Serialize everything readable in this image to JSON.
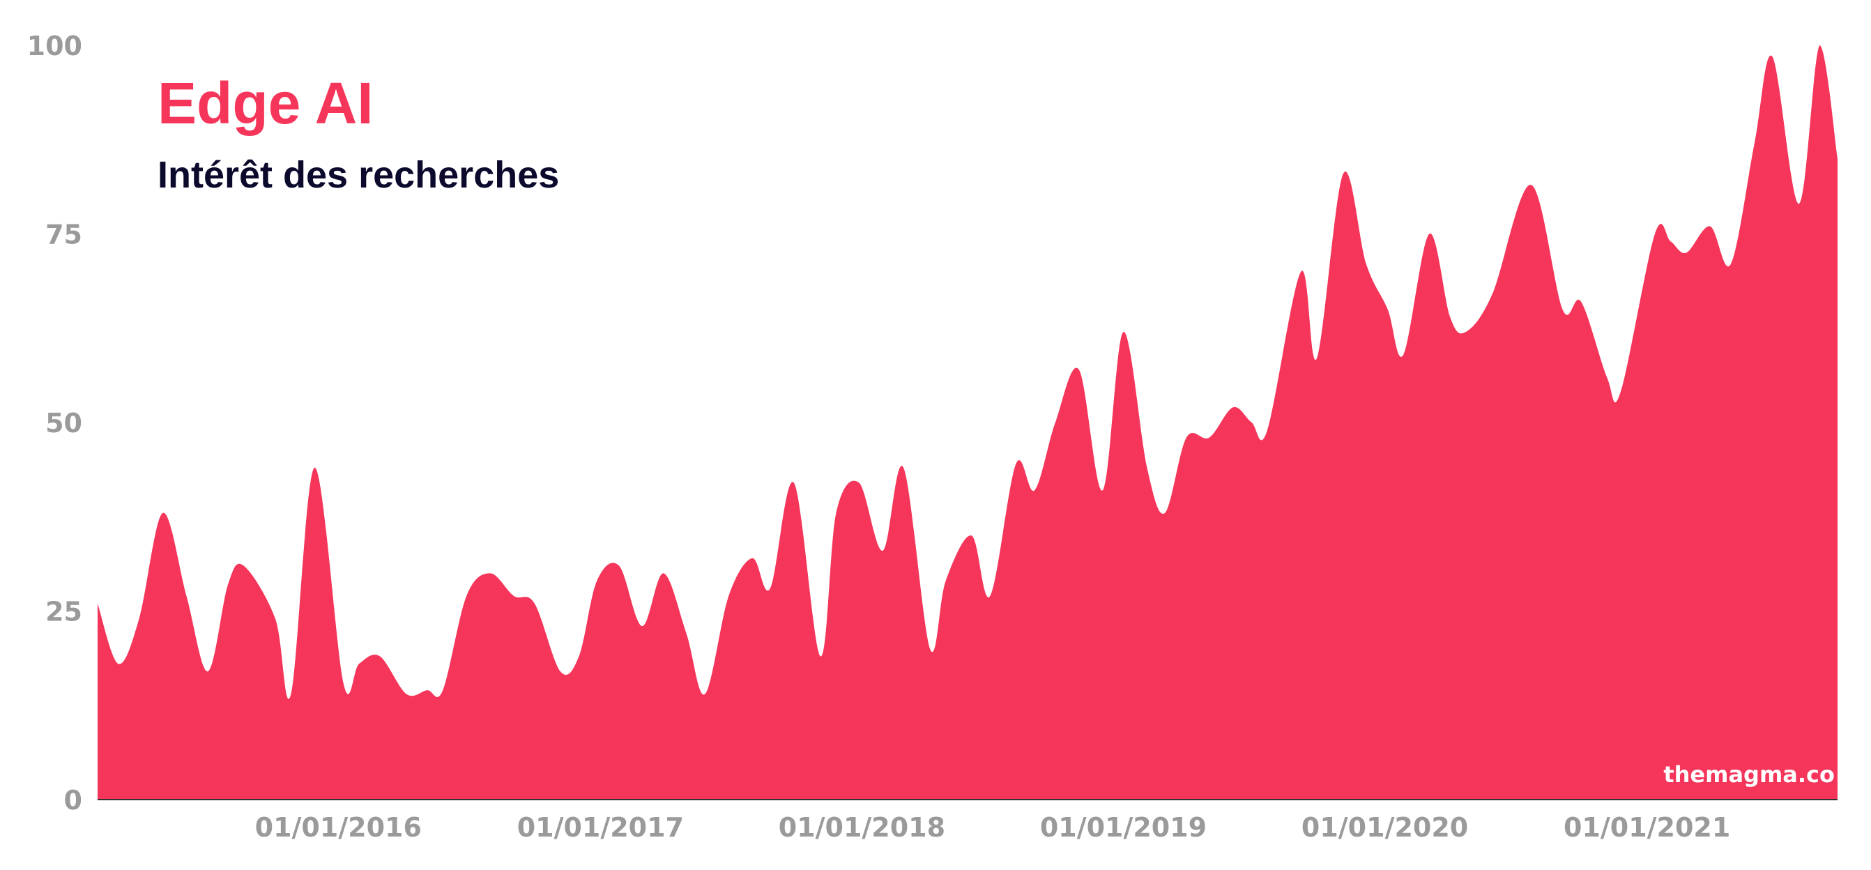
{
  "chart_data": {
    "type": "area",
    "title": "Edge AI",
    "subtitle": "Intérêt des recherches",
    "xlabel": "",
    "ylabel": "",
    "ylim": [
      0,
      100
    ],
    "yticks": [
      "0",
      "25",
      "50",
      "75",
      "100"
    ],
    "xticks": [
      {
        "date": "2016-01-01",
        "label": "01/01/2016"
      },
      {
        "date": "2017-01-01",
        "label": "01/01/2017"
      },
      {
        "date": "2018-01-01",
        "label": "01/01/2018"
      },
      {
        "date": "2019-01-01",
        "label": "01/01/2019"
      },
      {
        "date": "2020-01-01",
        "label": "01/01/2020"
      },
      {
        "date": "2021-01-01",
        "label": "01/01/2021"
      }
    ],
    "xlim": [
      "2015-01-30",
      "2021-09-24"
    ],
    "grid": false,
    "color": "#f5355a",
    "x": [
      "2015-01-30",
      "2015-02-28",
      "2015-03-29",
      "2015-05-01",
      "2015-06-03",
      "2015-07-03",
      "2015-07-31",
      "2015-08-22",
      "2015-10-05",
      "2015-10-27",
      "2015-11-29",
      "2016-01-08",
      "2016-01-30",
      "2016-02-28",
      "2016-04-05",
      "2016-05-04",
      "2016-05-26",
      "2016-06-28",
      "2016-07-31",
      "2016-09-02",
      "2016-10-01",
      "2016-11-06",
      "2016-12-02",
      "2016-12-27",
      "2017-01-27",
      "2017-02-28",
      "2017-03-30",
      "2017-05-01",
      "2017-05-27",
      "2017-06-29",
      "2017-08-01",
      "2017-08-26",
      "2017-09-28",
      "2017-11-04",
      "2017-11-26",
      "2017-12-28",
      "2018-01-30",
      "2018-02-28",
      "2018-04-06",
      "2018-04-28",
      "2018-06-03",
      "2018-06-29",
      "2018-08-04",
      "2018-08-30",
      "2018-09-28",
      "2018-10-31",
      "2018-12-03",
      "2019-01-01",
      "2019-02-03",
      "2019-02-28",
      "2019-03-30",
      "2019-05-01",
      "2019-06-03",
      "2019-06-29",
      "2019-07-21",
      "2019-09-06",
      "2019-09-28",
      "2019-11-04",
      "2019-12-06",
      "2020-01-05",
      "2020-01-27",
      "2020-03-03",
      "2020-04-01",
      "2020-04-23",
      "2020-05-30",
      "2020-07-23",
      "2020-09-05",
      "2020-10-01",
      "2020-11-06",
      "2020-11-25",
      "2021-01-12",
      "2021-02-03",
      "2021-02-25",
      "2021-03-30",
      "2021-04-28",
      "2021-05-31",
      "2021-06-25",
      "2021-08-01",
      "2021-08-30",
      "2021-09-24"
    ],
    "series": [
      {
        "values": [
          26,
          18,
          24,
          38,
          27,
          17,
          28.5,
          31,
          24,
          14,
          44,
          15.5,
          18,
          19,
          14,
          14.5,
          14.5,
          27,
          30,
          27,
          26,
          17,
          19,
          29,
          31,
          23,
          30,
          22,
          14,
          27,
          32,
          28,
          42,
          19,
          38,
          42,
          33,
          44,
          20,
          29,
          35,
          27,
          44.5,
          41,
          50,
          57,
          41,
          62,
          44,
          38,
          48,
          48,
          52,
          50,
          49,
          70,
          58.5,
          83,
          71,
          65,
          59,
          75,
          64,
          62,
          67,
          81.5,
          65,
          66,
          56,
          54,
          75,
          74,
          72.5,
          76,
          71,
          87,
          98.5,
          79,
          100,
          85
        ]
      }
    ]
  },
  "watermark": "themagma.co"
}
